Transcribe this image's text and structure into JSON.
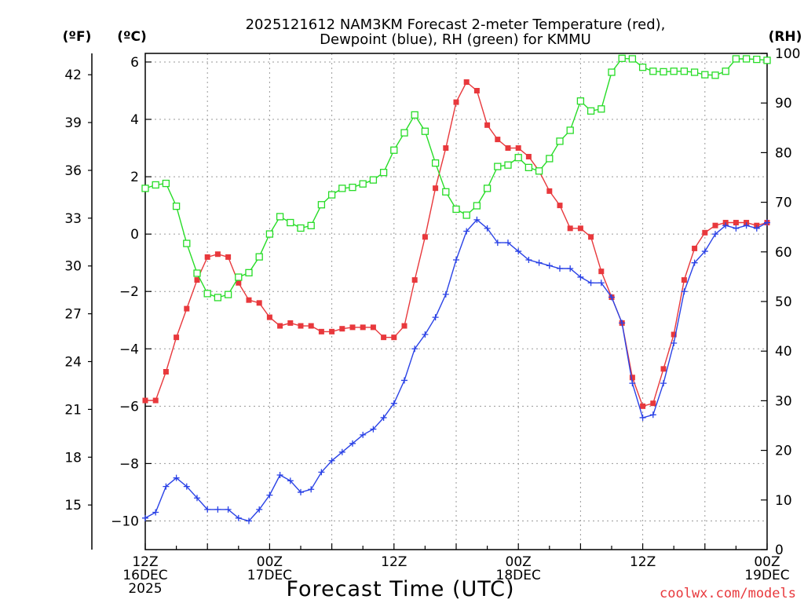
{
  "chart_data": {
    "type": "line",
    "title_line1": "2025121612 NAM3KM Forecast 2-meter Temperature (red),",
    "title_line2": "Dewpoint (blue), RH (green) for KMMU",
    "xlabel": "Forecast Time (UTC)",
    "watermark": "coolwx.com/models",
    "unit_left_outer": "(ºF)",
    "unit_left_inner": "(ºC)",
    "unit_right": "(RH)",
    "x_range_hours": [
      0,
      60
    ],
    "x_ticks": [
      {
        "hour": 0,
        "line1": "12Z",
        "line2": "16DEC",
        "line3": "2025"
      },
      {
        "hour": 12,
        "line1": "00Z",
        "line2": "17DEC",
        "line3": ""
      },
      {
        "hour": 24,
        "line1": "12Z",
        "line2": "",
        "line3": ""
      },
      {
        "hour": 36,
        "line1": "00Z",
        "line2": "18DEC",
        "line3": ""
      },
      {
        "hour": 48,
        "line1": "12Z",
        "line2": "",
        "line3": ""
      },
      {
        "hour": 60,
        "line1": "00Z",
        "line2": "19DEC",
        "line3": ""
      }
    ],
    "celsius_axis": {
      "min": -11,
      "max": 6.3,
      "ticks": [
        6,
        4,
        2,
        0,
        -2,
        -4,
        -6,
        -8,
        -10
      ],
      "tick_labels": [
        "6",
        "4",
        "2",
        "0",
        "−2",
        "−4",
        "−6",
        "−8",
        "−10"
      ]
    },
    "fahrenheit_axis": {
      "ticks": [
        42,
        39,
        36,
        33,
        30,
        27,
        24,
        21,
        18,
        15
      ]
    },
    "rh_axis": {
      "min": 0,
      "max": 100,
      "ticks": [
        0,
        10,
        20,
        30,
        40,
        50,
        60,
        70,
        80,
        90,
        100
      ]
    },
    "series": [
      {
        "name": "Temperature",
        "units": "C",
        "color": "#e8383c",
        "marker": "filled-square",
        "values": [
          -5.8,
          -5.8,
          -4.8,
          -3.6,
          -2.6,
          -1.6,
          -0.8,
          -0.7,
          -0.8,
          -1.7,
          -2.3,
          -2.4,
          -2.9,
          -3.2,
          -3.1,
          -3.2,
          -3.2,
          -3.4,
          -3.4,
          -3.3,
          -3.25,
          -3.25,
          -3.25,
          -3.6,
          -3.6,
          -3.2,
          -1.6,
          -0.1,
          1.6,
          3.0,
          4.6,
          5.3,
          5.0,
          3.8,
          3.3,
          3.0,
          3.0,
          2.7,
          2.2,
          1.5,
          1.0,
          0.2,
          0.2,
          -0.1,
          -1.3,
          -2.2,
          -3.1,
          -5.0,
          -6.0,
          -5.9,
          -4.7,
          -3.5,
          -1.6,
          -0.5,
          0.05,
          0.3,
          0.4,
          0.4,
          0.4,
          0.3,
          0.4
        ]
      },
      {
        "name": "Dewpoint",
        "units": "C",
        "color": "#2a42e6",
        "marker": "plus",
        "values": [
          -9.9,
          -9.7,
          -8.8,
          -8.5,
          -8.8,
          -9.2,
          -9.6,
          -9.6,
          -9.6,
          -9.9,
          -10.0,
          -9.6,
          -9.1,
          -8.4,
          -8.6,
          -9.0,
          -8.9,
          -8.3,
          -7.9,
          -7.6,
          -7.3,
          -7.0,
          -6.8,
          -6.4,
          -5.9,
          -5.1,
          -4.0,
          -3.5,
          -2.9,
          -2.1,
          -0.9,
          0.1,
          0.5,
          0.2,
          -0.3,
          -0.3,
          -0.6,
          -0.9,
          -1.0,
          -1.1,
          -1.2,
          -1.2,
          -1.5,
          -1.7,
          -1.7,
          -2.2,
          -3.1,
          -5.2,
          -6.4,
          -6.3,
          -5.2,
          -3.8,
          -2.0,
          -1.0,
          -0.6,
          0.0,
          0.3,
          0.2,
          0.3,
          0.2,
          0.4
        ]
      },
      {
        "name": "RH",
        "units": "%",
        "color": "#27dc27",
        "marker": "open-square",
        "values": [
          72.8,
          73.5,
          73.8,
          69.2,
          61.7,
          55.7,
          51.6,
          50.8,
          51.4,
          54.9,
          55.8,
          59.0,
          63.6,
          67.1,
          65.9,
          64.8,
          65.3,
          69.5,
          71.5,
          72.8,
          73.0,
          73.7,
          74.5,
          76.0,
          80.5,
          84.0,
          87.6,
          84.3,
          77.9,
          72.1,
          68.6,
          67.4,
          69.3,
          72.8,
          77.2,
          77.5,
          79.0,
          77.0,
          76.3,
          78.8,
          82.3,
          84.5,
          90.4,
          88.4,
          88.8,
          96.2,
          99.0,
          98.9,
          97.2,
          96.4,
          96.3,
          96.4,
          96.4,
          96.2,
          95.7,
          95.6,
          96.4,
          98.9,
          98.9,
          98.8,
          98.6
        ]
      }
    ]
  }
}
